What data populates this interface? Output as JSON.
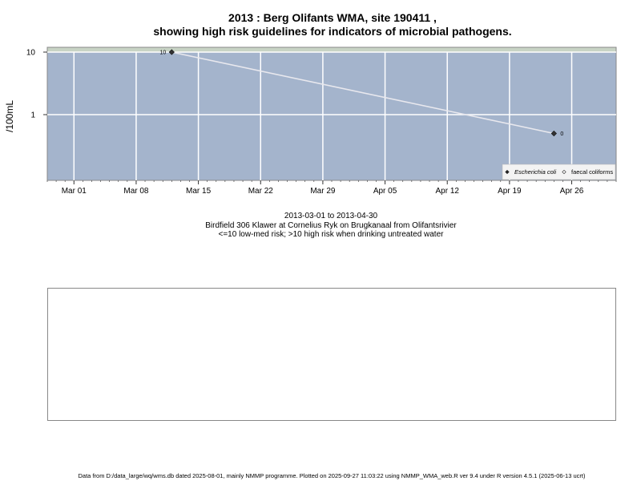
{
  "chart_data": {
    "type": "line",
    "title": "2013 : Berg Olifants WMA, site 190411 ,",
    "subtitle": "showing high risk guidelines for indicators of microbial pathogens.",
    "ylabel": "/100mL",
    "y_scale": "log",
    "ylim": [
      0.1,
      12
    ],
    "y_ticks": [
      {
        "value": 1,
        "label": "1"
      },
      {
        "value": 10,
        "label": "10"
      }
    ],
    "x_range": [
      "2013-02-26",
      "2013-05-01"
    ],
    "x_ticks": [
      {
        "date": "2013-03-01",
        "label": "Mar 01"
      },
      {
        "date": "2013-03-08",
        "label": "Mar 08"
      },
      {
        "date": "2013-03-15",
        "label": "Mar 15"
      },
      {
        "date": "2013-03-22",
        "label": "Mar 22"
      },
      {
        "date": "2013-03-29",
        "label": "Mar 29"
      },
      {
        "date": "2013-04-05",
        "label": "Apr 05"
      },
      {
        "date": "2013-04-12",
        "label": "Apr 12"
      },
      {
        "date": "2013-04-19",
        "label": "Apr 19"
      },
      {
        "date": "2013-04-26",
        "label": "Apr 26"
      }
    ],
    "guideline": {
      "value": 10,
      "color": "#c8d4c5"
    },
    "grid": true,
    "background": "#a4b4cc",
    "series": [
      {
        "name": "Escherichia coli",
        "marker": "filled-diamond",
        "color": "#333333",
        "points": [
          {
            "date": "2013-03-12",
            "value": 10,
            "label": "10"
          },
          {
            "date": "2013-04-24",
            "value": 0.5,
            "label": "0"
          }
        ]
      }
    ],
    "legend": {
      "position": "bottom-right",
      "entries": [
        {
          "name": "Escherichia coli",
          "marker": "filled-diamond"
        },
        {
          "name": "faecal coliforms",
          "marker": "open-diamond"
        }
      ]
    }
  },
  "captions": {
    "date_range": "2013-03-01 to 2013-04-30",
    "site_description": "Birdfield 306 Klawer at Cornelius Ryk on Brugkanaal from Olifantsrivier",
    "risk_note": "<=10 low-med risk; >10 high risk when drinking untreated water"
  },
  "footer": "Data from D:/data_large/wq/wms.db dated 2025-08-01, mainly NMMP programme. Plotted on 2025-09-27 11:03:22 using NMMP_WMA_web.R ver 9.4 under R version 4.5.1 (2025-06-13 ucrt)"
}
